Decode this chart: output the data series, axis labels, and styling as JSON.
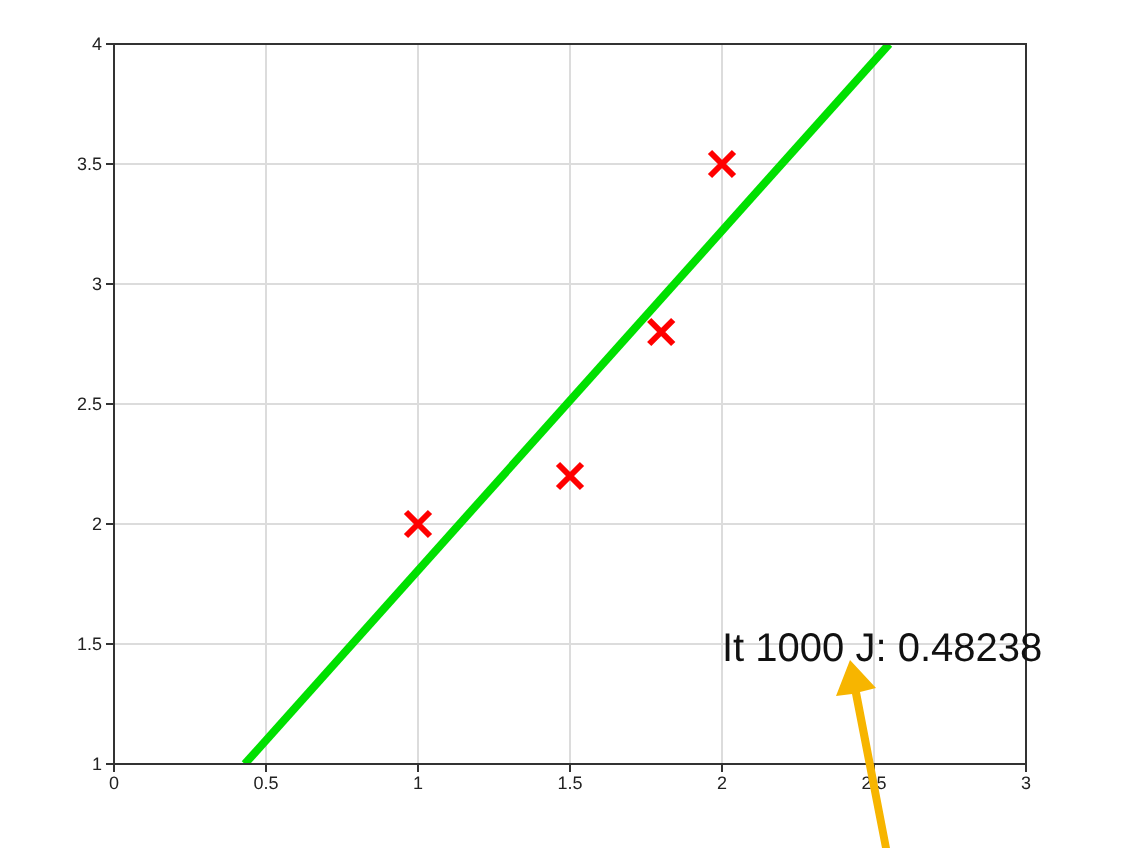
{
  "chart_data": {
    "type": "scatter",
    "xlim": [
      0,
      3
    ],
    "ylim": [
      1,
      4
    ],
    "xticks": [
      0,
      0.5,
      1,
      1.5,
      2,
      2.5,
      3
    ],
    "yticks": [
      1,
      1.5,
      2,
      2.5,
      3,
      3.5,
      4
    ],
    "grid": true,
    "series": [
      {
        "marker": "cross",
        "color": "#ff0000",
        "x": [
          1,
          1.5,
          1.8,
          2
        ],
        "values": [
          2,
          2.2,
          2.8,
          3.5
        ]
      },
      {
        "type": "line",
        "marker": "none",
        "color": "#00e000",
        "x": [
          0.43,
          2.55
        ],
        "values": [
          1,
          4
        ]
      }
    ],
    "annotations": [
      "It 1000 J: 0.48238"
    ]
  }
}
